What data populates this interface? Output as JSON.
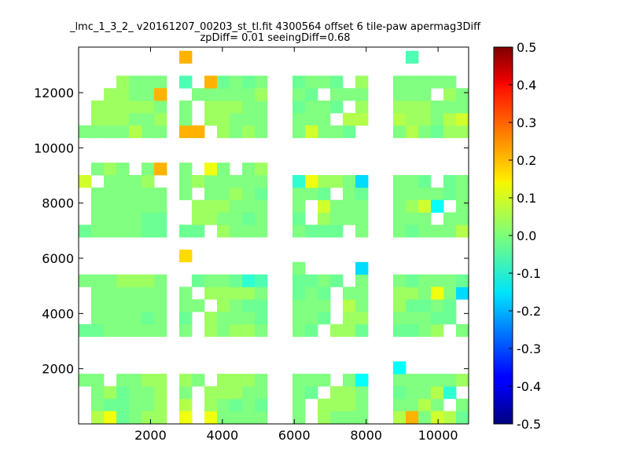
{
  "chart_data": {
    "type": "heatmap",
    "title": "_lmc_1_3_2_ v20161207_00203_st_tl.fit 4300564 offset 6 tile-paw apermag3Diff",
    "subtitle": "zpDiff= 0.01 seeingDiff=0.68",
    "xlabel": "",
    "ylabel": "",
    "xlim": [
      0,
      10850
    ],
    "ylim": [
      0,
      13650
    ],
    "xticks": [
      2000,
      4000,
      6000,
      8000,
      10000
    ],
    "yticks": [
      2000,
      4000,
      6000,
      8000,
      10000,
      12000
    ],
    "colorbar": {
      "min": -0.5,
      "max": 0.5,
      "ticks": [
        "0.5",
        "0.4",
        "0.3",
        "0.2",
        "0.1",
        "0.0",
        "-0.1",
        "-0.2",
        "-0.3",
        "-0.4",
        "-0.5"
      ]
    },
    "cell_width": 350,
    "cell_height": 450,
    "y_origin": 15,
    "column_starts": [
      0,
      350,
      700,
      1050,
      1400,
      1750,
      2100,
      2800,
      3150,
      3500,
      3850,
      4200,
      4550,
      4900,
      5950,
      6300,
      6650,
      7000,
      7350,
      7700,
      8750,
      9100,
      9450,
      9800,
      10150,
      10500
    ],
    "value_note": "value_rows listed bottom-to-top; '.' = empty",
    "value_scale": "a=-0.24 b=-0.16 c=-0.12 d=-0.08 e=-0.05 f=-0.02 g=0.0 h=0.03 i=0.05 j=0.08 k=0.11 l=0.16 m=0.2 n=0.28",
    "value_rows": [
      ".ikfgghj.kggggg.hgggiiiiif.fggggg",
      ".gffgghi.hgfffg.hhhgggig.ggfjfgh",
      ".ghfgghg.hhhgggf.hhggggid.gfhhgh",
      "gg.gghhhg.hhhgggg.ggggggghc.ggghhhh",
      ".................................",
      ".................................",
      ".................................",
      "ffgggggg.hghhggf.hhfffgh.ggfggggf",
      ".ggggfgf.hgggfggf.hhgggff.ggggggh",
      ".gggggggg.hgffggg.ighffgf.hghhgii",
      ".ggggggg.hhhhgfgf.gghhgfgb.gggghh",
      "ggghhhg.fggfdeffgf.ggfgggf.gggggggg",
      ".................................",
      ".................................",
      ".................................",
      "fggggffff.hggggfff.ggfgggijh.gjgcgh",
      ".ggggff.hhggfgf.hgggggg.gggfgg",
      ".gggggg.hhhgggg.jgggghgc.ggggggh",
      ".ggggggg.gghgfggf.gfggggfg.ghgeggh",
      "j.gggh.ghgggggd.hhggggf.fg..ggh",
      ".ghg.gmg.kg.gh.",
      ".................................",
      ".................................",
      "ggggfggmg.hghgggggf.gigfhhf.ghggggh",
      ".hhhgghg.hhgggggg.iiihhgij.gggggggh",
      ".hhhhhgg.hhhggfggf.hhhhggg.jgghhhh",
      "..hhggg.ggggghgf.gggggg.hggggg",
      "...hggge.mfgfgfggf.hggggg.ddgggg"
    ],
    "heatmap_cells": [
      {
        "x": 350,
        "y": 15,
        "v": 0.05
      },
      {
        "x": 700,
        "y": 15,
        "v": 0.11
      },
      {
        "x": 1050,
        "y": 15,
        "v": -0.02
      },
      {
        "x": 1400,
        "y": 15,
        "v": 0.0
      },
      {
        "x": 1750,
        "y": 15,
        "v": 0.03
      },
      {
        "x": 2800,
        "y": 15,
        "v": 0.11
      },
      {
        "x": 9100,
        "y": 15,
        "v": 0.2
      },
      {
        "x": 9450,
        "y": 15,
        "v": 0.0
      },
      {
        "x": 9800,
        "y": 15,
        "v": 0.08
      },
      {
        "x": 4550,
        "y": 465,
        "v": 0.0
      },
      {
        "x": 8750,
        "y": 915,
        "v": -0.02
      },
      {
        "x": 7700,
        "y": 1365,
        "v": -0.12
      },
      {
        "x": 8750,
        "y": 1815,
        "v": -0.12
      },
      {
        "x": 2800,
        "y": 5865,
        "v": 0.16
      },
      {
        "x": 5950,
        "y": 5415,
        "v": 0.0
      },
      {
        "x": 7700,
        "y": 5415,
        "v": -0.16
      },
      {
        "x": 9800,
        "y": 4515,
        "v": 0.11
      },
      {
        "x": 9450,
        "y": 7665,
        "v": 0.08
      },
      {
        "x": 9800,
        "y": 7665,
        "v": -0.12
      },
      {
        "x": 6300,
        "y": 8565,
        "v": 0.11
      },
      {
        "x": 7700,
        "y": 8565,
        "v": -0.16
      },
      {
        "x": 3150,
        "y": 10365,
        "v": 0.2
      },
      {
        "x": 1400,
        "y": 10365,
        "v": 0.05
      },
      {
        "x": 6300,
        "y": 10365,
        "v": 0.08
      },
      {
        "x": 2100,
        "y": 11715,
        "v": 0.2
      },
      {
        "x": 2800,
        "y": 13065,
        "v": 0.2
      },
      {
        "x": 9100,
        "y": 13065,
        "v": -0.05
      }
    ]
  }
}
